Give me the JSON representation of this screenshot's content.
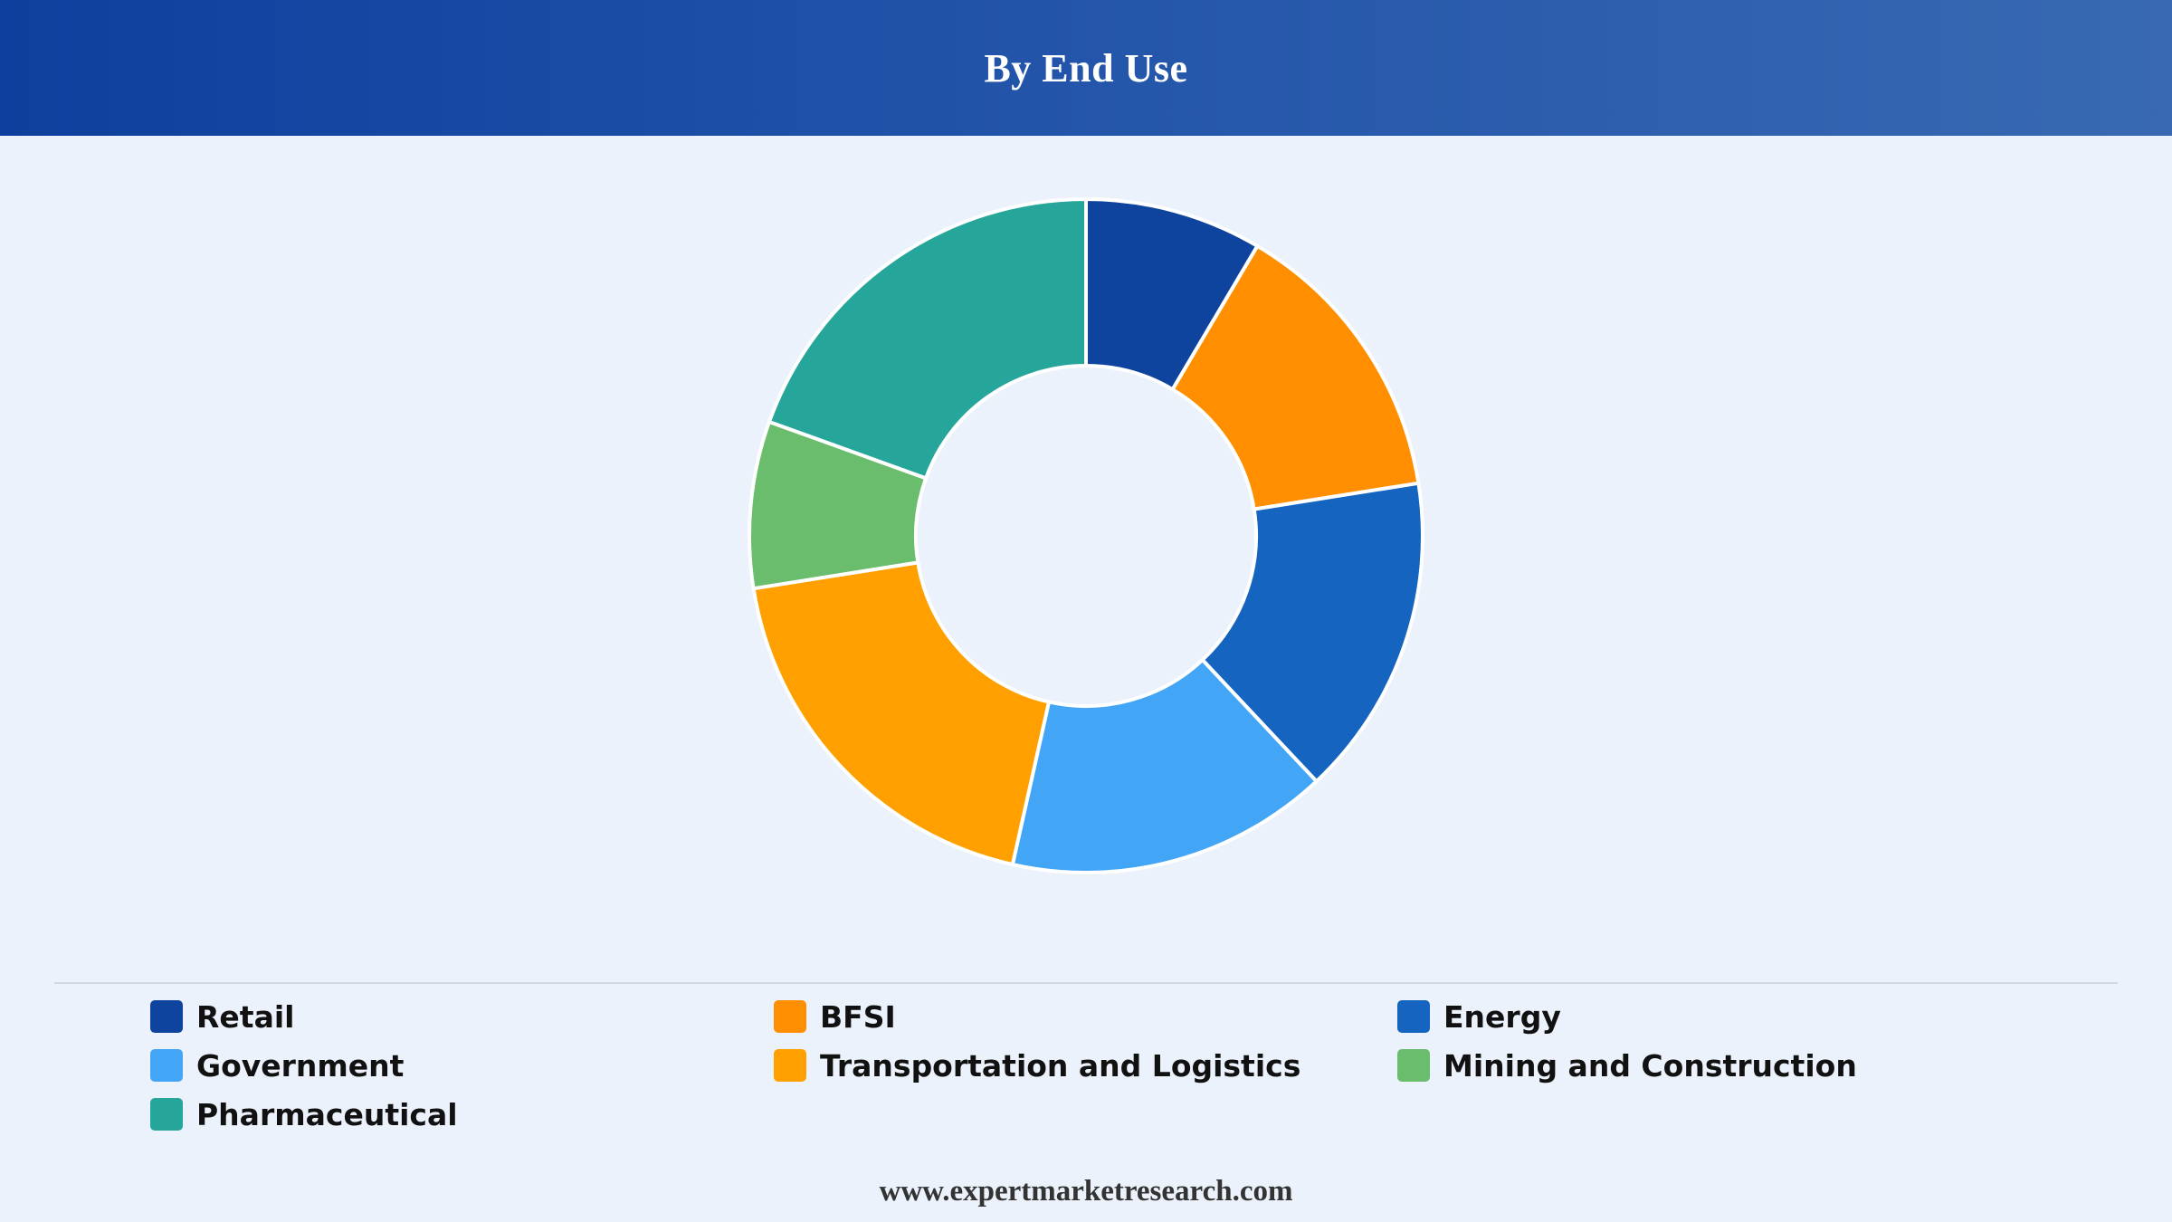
{
  "header": {
    "title": "By End Use"
  },
  "chart_data": {
    "type": "pie",
    "donut": true,
    "title": "By End Use",
    "categories": [
      "Retail",
      "BFSI",
      "Energy",
      "Government",
      "Transportation and Logistics",
      "Mining and Construction",
      "Pharmaceutical"
    ],
    "values": [
      8.5,
      14,
      15.5,
      15.5,
      19,
      8,
      19.5
    ],
    "colors": [
      "#0e449e",
      "#ff8f00",
      "#1565c0",
      "#42a5f5",
      "#ffa000",
      "#6abd6c",
      "#26a69a"
    ],
    "legend_position": "bottom"
  },
  "footer": {
    "url": "www.expertmarketresearch.com"
  }
}
